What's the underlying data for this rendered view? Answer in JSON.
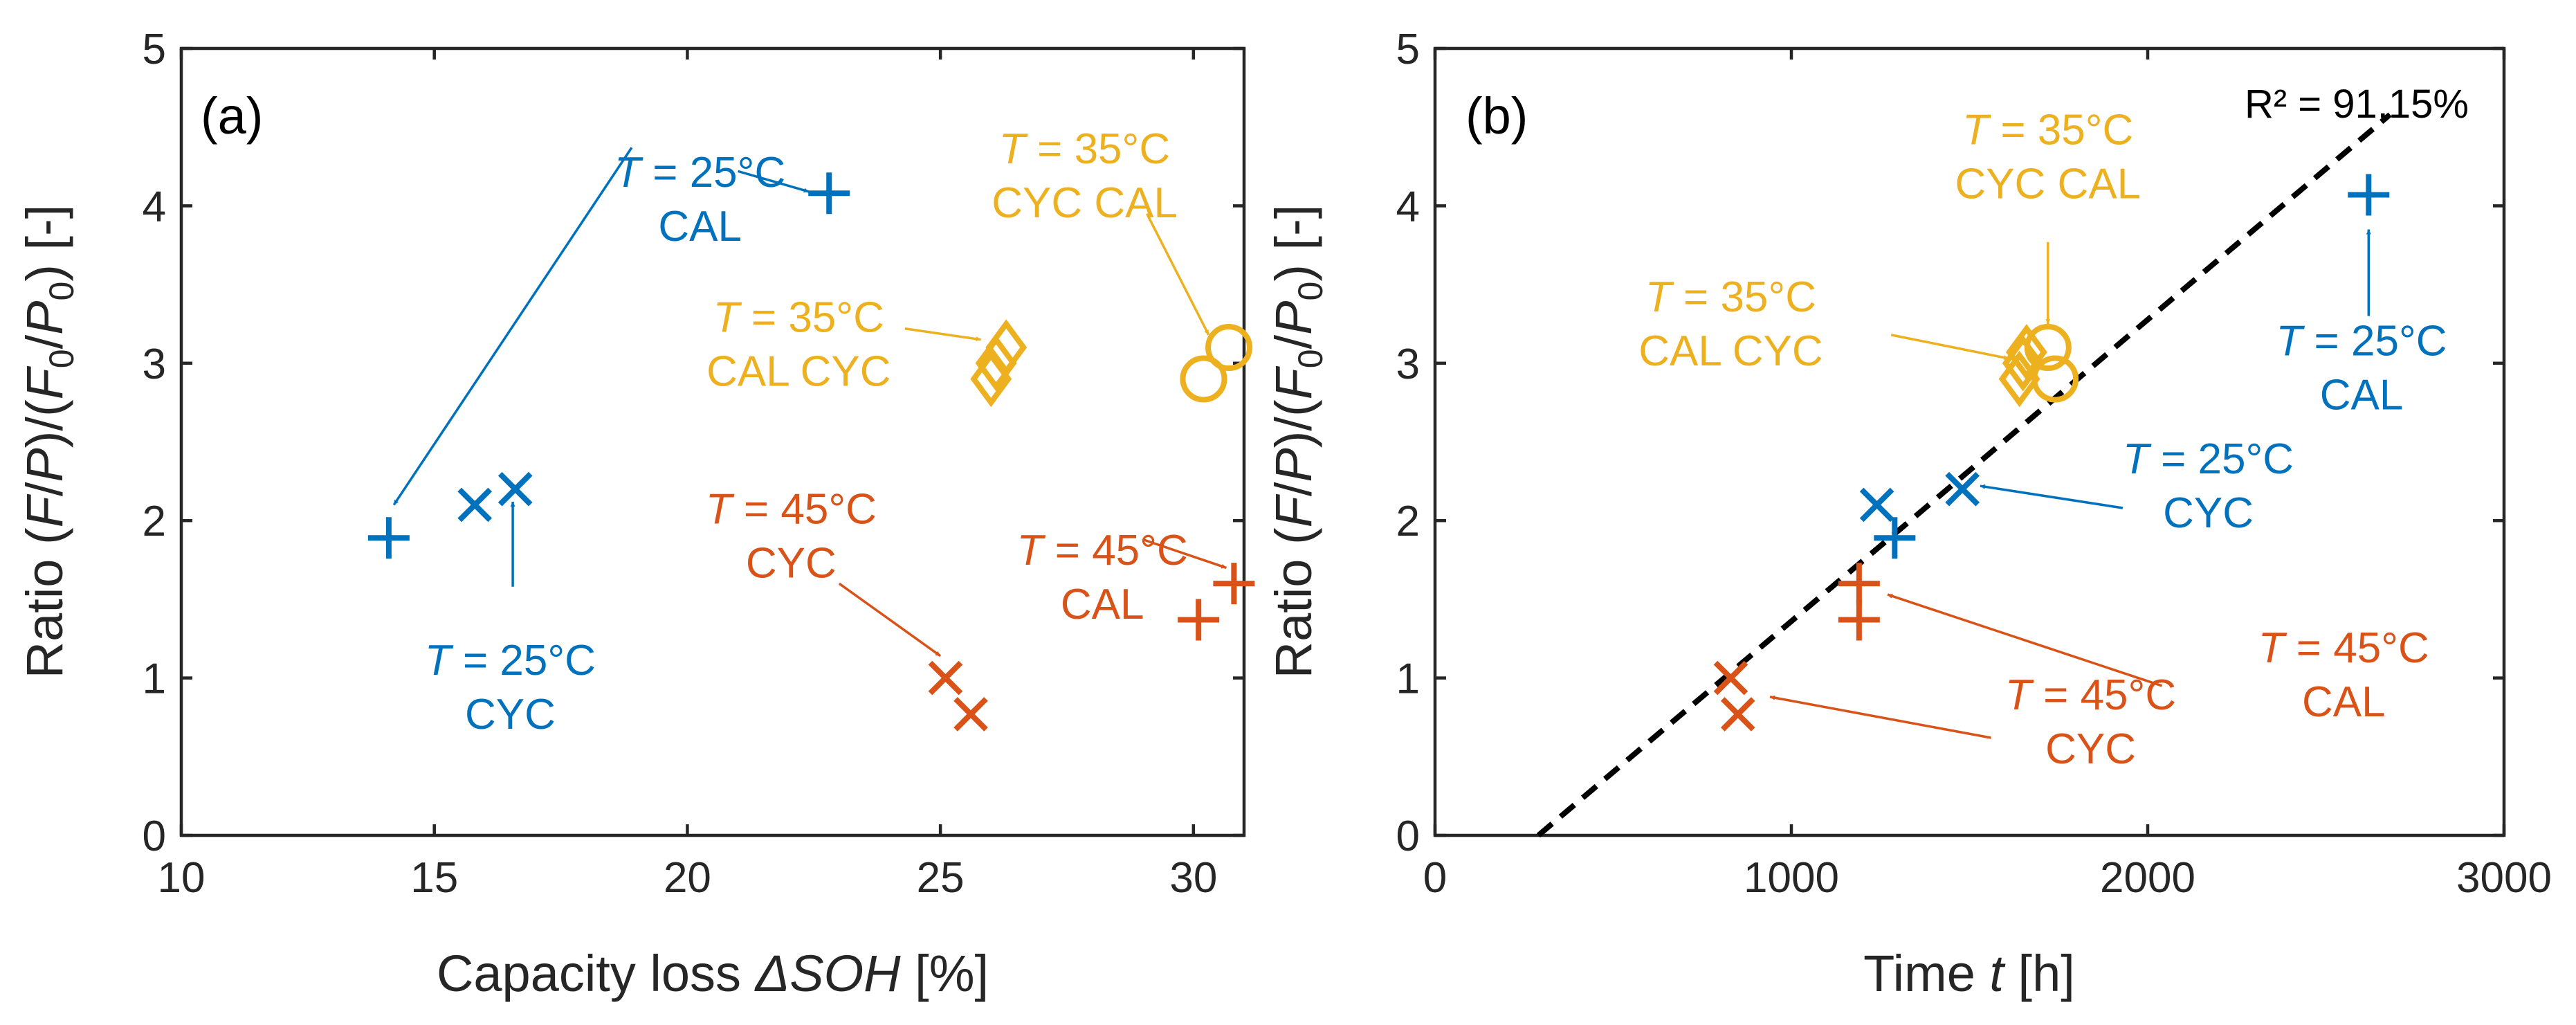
{
  "colors": {
    "blue": "#0072BD",
    "orange": "#D95319",
    "yellow": "#EDB120",
    "axis": "#262626",
    "fit": "#000000"
  },
  "chart_data": [
    {
      "panel_label": "(a)",
      "type": "scatter",
      "xlabel": {
        "prefix": "Capacity loss ",
        "symbol": "ΔSOH",
        "suffix": " [%]"
      },
      "ylabel": "Ratio (F/P)/(F0/P0) [-]",
      "xlim": [
        10,
        31
      ],
      "ylim": [
        0,
        5
      ],
      "xticks": [
        "10",
        "15",
        "20",
        "25",
        "30"
      ],
      "yticks": [
        "0",
        "1",
        "2",
        "3",
        "4",
        "5"
      ],
      "series": [
        {
          "name": "T = 25°C CAL",
          "marker": "plus",
          "color": "blue",
          "points": [
            [
              22.8,
              4.08
            ],
            [
              14.1,
              1.89
            ]
          ]
        },
        {
          "name": "T = 25°C CYC",
          "marker": "x",
          "color": "blue",
          "points": [
            [
              15.8,
              2.1
            ],
            [
              16.6,
              2.2
            ]
          ]
        },
        {
          "name": "T = 35°C CAL CYC",
          "marker": "diamond",
          "color": "yellow",
          "points": [
            [
              26.0,
              2.9
            ],
            [
              26.1,
              3.0
            ],
            [
              26.3,
              3.1
            ]
          ]
        },
        {
          "name": "T = 35°C CYC CAL",
          "marker": "circle",
          "color": "yellow",
          "points": [
            [
              30.2,
              2.9
            ],
            [
              30.7,
              3.1
            ]
          ]
        },
        {
          "name": "T = 45°C CYC",
          "marker": "x",
          "color": "orange",
          "points": [
            [
              25.1,
              1.0
            ],
            [
              25.6,
              0.77
            ]
          ]
        },
        {
          "name": "T = 45°C CAL",
          "marker": "plus",
          "color": "orange",
          "points": [
            [
              30.1,
              1.37
            ],
            [
              30.8,
              1.6
            ]
          ]
        }
      ],
      "annotations": [
        {
          "series": "T = 25°C CAL",
          "color": "blue",
          "lines": [
            [
              "T",
              " = 25°C"
            ],
            [
              "",
              "CAL"
            ]
          ],
          "text_at": [
            20.25,
            4.12
          ],
          "arrows": [
            [
              [
                21.0,
                4.22
              ],
              [
                22.4,
                4.09
              ]
            ],
            [
              [
                18.9,
                4.37
              ],
              [
                14.2,
                2.1
              ]
            ]
          ]
        },
        {
          "series": "T = 25°C CYC",
          "color": "blue",
          "lines": [
            [
              "T",
              " = 25°C"
            ],
            [
              "",
              "CYC"
            ]
          ],
          "text_at": [
            16.5,
            1.02
          ],
          "arrows": [
            [
              [
                16.55,
                1.58
              ],
              [
                16.55,
                2.12
              ]
            ]
          ]
        },
        {
          "series": "T = 35°C CYC CAL",
          "color": "yellow",
          "lines": [
            [
              "T",
              " = 35°C"
            ],
            [
              "",
              "CYC CAL"
            ]
          ],
          "text_at": [
            27.85,
            4.27
          ],
          "arrows": [
            [
              [
                29.08,
                3.95
              ],
              [
                30.3,
                3.18
              ]
            ]
          ]
        },
        {
          "series": "T = 35°C CAL CYC",
          "color": "yellow",
          "lines": [
            [
              "T",
              " = 35°C"
            ],
            [
              "",
              "CAL CYC"
            ]
          ],
          "text_at": [
            22.2,
            3.2
          ],
          "arrows": [
            [
              [
                24.3,
                3.22
              ],
              [
                25.8,
                3.15
              ]
            ]
          ]
        },
        {
          "series": "T = 45°C CYC",
          "color": "orange",
          "lines": [
            [
              "T",
              " = 45°C"
            ],
            [
              "",
              "CYC"
            ]
          ],
          "text_at": [
            22.05,
            1.98
          ],
          "arrows": [
            [
              [
                23.0,
                1.6
              ],
              [
                25.0,
                1.14
              ]
            ]
          ]
        },
        {
          "series": "T = 45°C CAL",
          "color": "orange",
          "lines": [
            [
              "T",
              " = 45°C"
            ],
            [
              "",
              "CAL"
            ]
          ],
          "text_at": [
            28.2,
            1.72
          ],
          "arrows": [
            [
              [
                29.0,
                1.88
              ],
              [
                30.65,
                1.7
              ]
            ]
          ]
        }
      ]
    },
    {
      "panel_label": "(b)",
      "type": "scatter",
      "xlabel": {
        "prefix": "Time ",
        "symbol": "t",
        "suffix": " [h]"
      },
      "ylabel": "Ratio (F/P)/(F0/P0) [-]",
      "xlim": [
        0,
        3000
      ],
      "ylim": [
        0,
        5
      ],
      "xticks": [
        "0",
        "1000",
        "2000",
        "3000"
      ],
      "yticks": [
        "0",
        "1",
        "2",
        "3",
        "4",
        "5"
      ],
      "fit": {
        "label": "R² = 91.15%",
        "x": [
          290,
          2680
        ],
        "y": [
          0.0,
          4.58
        ]
      },
      "series": [
        {
          "name": "T = 25°C CAL",
          "marker": "plus",
          "color": "blue",
          "points": [
            [
              2620,
              4.07
            ],
            [
              1290,
              1.89
            ]
          ]
        },
        {
          "name": "T = 25°C CYC",
          "marker": "x",
          "color": "blue",
          "points": [
            [
              1240,
              2.1
            ],
            [
              1480,
              2.2
            ]
          ]
        },
        {
          "name": "T = 35°C CAL CYC",
          "marker": "diamond",
          "color": "yellow",
          "points": [
            [
              1640,
              2.9
            ],
            [
              1650,
              3.0
            ],
            [
              1660,
              3.07
            ]
          ]
        },
        {
          "name": "T = 35°C CYC CAL",
          "marker": "circle",
          "color": "yellow",
          "points": [
            [
              1740,
              2.9
            ],
            [
              1720,
              3.1
            ]
          ]
        },
        {
          "name": "T = 45°C CYC",
          "marker": "x",
          "color": "orange",
          "points": [
            [
              830,
              1.0
            ],
            [
              850,
              0.77
            ]
          ]
        },
        {
          "name": "T = 45°C CAL",
          "marker": "plus",
          "color": "orange",
          "points": [
            [
              1190,
              1.37
            ],
            [
              1190,
              1.6
            ]
          ]
        }
      ],
      "annotations": [
        {
          "series": "T = 25°C CAL",
          "color": "blue",
          "lines": [
            [
              "T",
              " = 25°C"
            ],
            [
              "",
              "CAL"
            ]
          ],
          "text_at": [
            2600,
            3.05
          ],
          "arrows": [
            [
              [
                2620,
                3.3
              ],
              [
                2620,
                3.85
              ]
            ]
          ]
        },
        {
          "series": "T = 25°C CYC",
          "color": "blue",
          "lines": [
            [
              "T",
              " = 25°C"
            ],
            [
              "",
              "CYC"
            ]
          ],
          "text_at": [
            2170,
            2.3
          ],
          "arrows": [
            [
              [
                1930,
                2.08
              ],
              [
                1530,
                2.22
              ]
            ]
          ]
        },
        {
          "series": "T = 35°C CYC CAL",
          "color": "yellow",
          "lines": [
            [
              "T",
              " = 35°C"
            ],
            [
              "",
              "CYC CAL"
            ]
          ],
          "text_at": [
            1720,
            4.39
          ],
          "arrows": [
            [
              [
                1720,
                3.77
              ],
              [
                1720,
                3.25
              ]
            ]
          ]
        },
        {
          "series": "T = 35°C CAL CYC",
          "color": "yellow",
          "lines": [
            [
              "T",
              " = 35°C"
            ],
            [
              "",
              "CAL CYC"
            ]
          ],
          "text_at": [
            830,
            3.33
          ],
          "arrows": [
            [
              [
                1280,
                3.18
              ],
              [
                1610,
                3.03
              ]
            ]
          ]
        },
        {
          "series": "T = 45°C CYC",
          "color": "orange",
          "lines": [
            [
              "T",
              " = 45°C"
            ],
            [
              "",
              "CYC"
            ]
          ],
          "text_at": [
            1840,
            0.8
          ],
          "arrows": [
            [
              [
                1560,
                0.62
              ],
              [
                940,
                0.88
              ]
            ]
          ]
        },
        {
          "series": "T = 45°C CAL",
          "color": "orange",
          "lines": [
            [
              "T",
              " = 45°C"
            ],
            [
              "",
              "CAL"
            ]
          ],
          "text_at": [
            2550,
            1.1
          ],
          "arrows": [
            [
              [
                2040,
                0.95
              ],
              [
                1270,
                1.53
              ]
            ]
          ]
        }
      ]
    }
  ]
}
